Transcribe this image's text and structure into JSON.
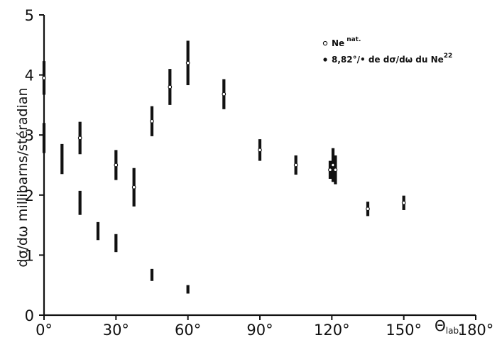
{
  "chart_data": {
    "type": "scatter",
    "xlabel": "Θlab.",
    "ylabel": "dσ/dω  millibarns/stéradian",
    "xlim": [
      0,
      180
    ],
    "ylim": [
      0,
      5
    ],
    "x_ticks": [
      0,
      30,
      60,
      90,
      120,
      150,
      180
    ],
    "x_tick_labels": [
      "0°",
      "30°",
      "60°",
      "90°",
      "120°",
      "150°",
      "180°"
    ],
    "y_ticks": [
      0,
      1,
      2,
      3,
      4,
      5
    ],
    "y_tick_labels": [
      "0",
      "1",
      "2",
      "3",
      "4",
      "5"
    ],
    "legend_position": "top-right",
    "error_bars": true,
    "series": [
      {
        "name": "Ne nat.",
        "marker": "open-circle",
        "points": [
          {
            "x": 0,
            "y": 3.95,
            "err": 0.28
          },
          {
            "x": 15,
            "y": 2.95,
            "err": 0.27
          },
          {
            "x": 30,
            "y": 2.5,
            "err": 0.25
          },
          {
            "x": 37.5,
            "y": 2.13,
            "err": 0.32
          },
          {
            "x": 45,
            "y": 3.23,
            "err": 0.25
          },
          {
            "x": 52.5,
            "y": 3.8,
            "err": 0.3
          },
          {
            "x": 60,
            "y": 4.2,
            "err": 0.37
          },
          {
            "x": 75,
            "y": 3.68,
            "err": 0.25
          },
          {
            "x": 90,
            "y": 2.75,
            "err": 0.18
          },
          {
            "x": 105,
            "y": 2.5,
            "err": 0.16
          },
          {
            "x": 119.3,
            "y": 2.42,
            "err": 0.15
          },
          {
            "x": 120.5,
            "y": 2.5,
            "err": 0.28
          },
          {
            "x": 121.5,
            "y": 2.42,
            "err": 0.24
          },
          {
            "x": 135,
            "y": 1.77,
            "err": 0.12
          },
          {
            "x": 150,
            "y": 1.87,
            "err": 0.12
          }
        ]
      },
      {
        "name": "8,82% de dσ/dω du Ne22",
        "marker": "filled-circle",
        "points": [
          {
            "x": 0,
            "y": 2.95,
            "err": 0.25
          },
          {
            "x": 7.5,
            "y": 2.6,
            "err": 0.25
          },
          {
            "x": 15,
            "y": 1.87,
            "err": 0.2
          },
          {
            "x": 22.5,
            "y": 1.4,
            "err": 0.15
          },
          {
            "x": 30,
            "y": 1.2,
            "err": 0.15
          },
          {
            "x": 45,
            "y": 0.67,
            "err": 0.1
          },
          {
            "x": 60,
            "y": 0.43,
            "err": 0.07
          }
        ]
      }
    ]
  },
  "legend": {
    "open_text": "Ne",
    "open_sup": "nat.",
    "filled_text": "8,82°/• de dσ/dω du Ne",
    "filled_sup": "22"
  },
  "xlabel_main": "Θ",
  "xlabel_sub": "lab."
}
